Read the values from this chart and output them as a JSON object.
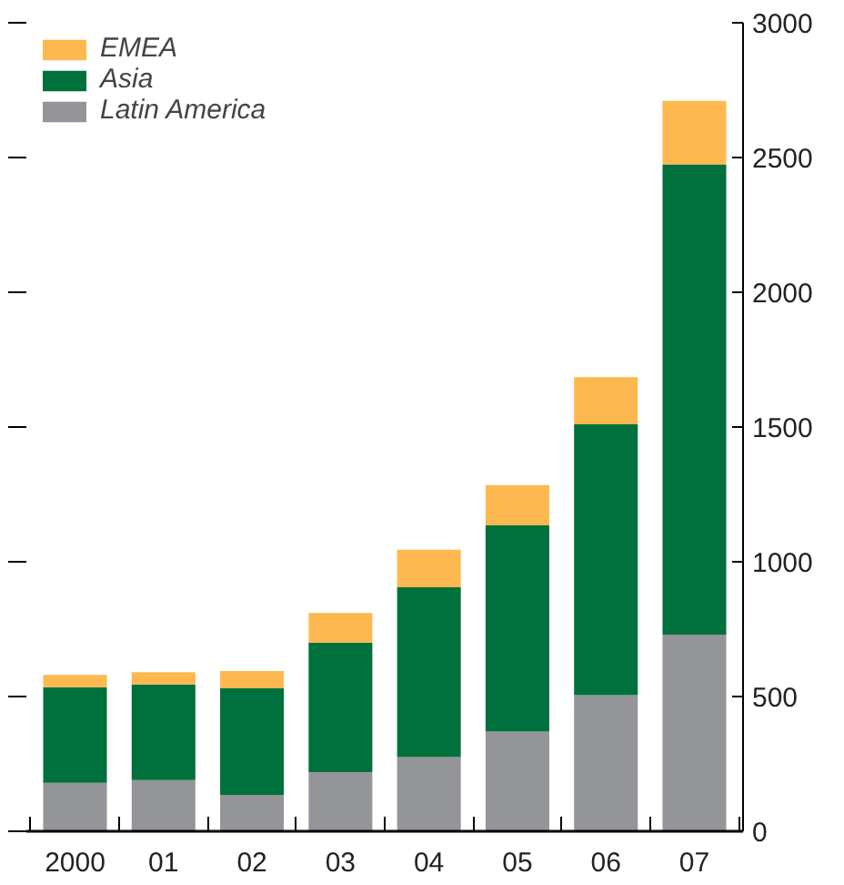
{
  "chart_data": {
    "type": "bar",
    "stacked": true,
    "categories": [
      "2000",
      "01",
      "02",
      "03",
      "04",
      "05",
      "06",
      "07"
    ],
    "series": [
      {
        "name": "Latin America",
        "color": "#939598",
        "values": [
          180,
          190,
          135,
          220,
          275,
          370,
          505,
          730
        ]
      },
      {
        "name": "Asia",
        "color": "#00703c",
        "values": [
          355,
          355,
          395,
          480,
          630,
          765,
          1005,
          1745
        ]
      },
      {
        "name": "EMEA",
        "color": "#fdb94f",
        "values": [
          45,
          45,
          65,
          110,
          140,
          150,
          175,
          235
        ]
      }
    ],
    "ylim": [
      0,
      3000
    ],
    "yticks": [
      0,
      500,
      1000,
      1500,
      2000,
      2500,
      3000
    ],
    "grid": false,
    "legend": "top left"
  }
}
